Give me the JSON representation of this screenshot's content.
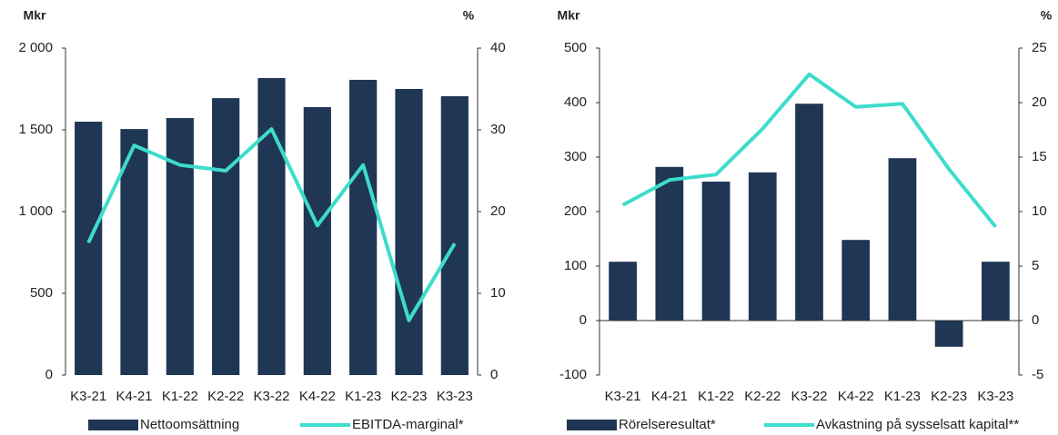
{
  "chart_data": [
    {
      "type": "bar",
      "y_label": "Mkr",
      "y2_label": "%",
      "categories": [
        "K3-21",
        "K4-21",
        "K1-22",
        "K2-22",
        "K3-22",
        "K4-22",
        "K1-23",
        "K2-23",
        "K3-23"
      ],
      "series": [
        {
          "name": "Nettoomsättning",
          "type": "bar",
          "color": "#1f3655",
          "values": [
            1550,
            1505,
            1572,
            1694,
            1817,
            1639,
            1806,
            1750,
            1706
          ]
        },
        {
          "name": "EBITDA-marginal*",
          "type": "line",
          "axis": "y2",
          "color": "#3ddccb",
          "values": [
            16.2,
            28.1,
            25.7,
            25,
            30.1,
            18.3,
            25.7,
            6.7,
            16.1
          ]
        }
      ],
      "ylim": [
        0,
        2000
      ],
      "yticks": [
        0,
        500,
        {
          "value": 1000,
          "label": "1 000"
        },
        {
          "value": 1500,
          "label": "1 500"
        },
        {
          "value": 2000,
          "label": "2 000"
        }
      ],
      "y2lim": [
        0,
        40
      ],
      "y2ticks": [
        0,
        10,
        20,
        30,
        40
      ],
      "legend": "bottom"
    },
    {
      "type": "bar",
      "y_label": "Mkr",
      "y2_label": "%",
      "categories": [
        "K3-21",
        "K4-21",
        "K1-22",
        "K2-22",
        "K3-22",
        "K4-22",
        "K1-23",
        "K2-23",
        "K3-23"
      ],
      "series": [
        {
          "name": "Rörelseresultat*",
          "type": "bar",
          "color": "#1f3655",
          "values": [
            108,
            282,
            255,
            272,
            398,
            148,
            298,
            -48,
            108
          ]
        },
        {
          "name": "Avkastning på sysselsatt kapital**",
          "type": "line",
          "axis": "y2",
          "color": "#3ddccb",
          "values": [
            10.6,
            12.9,
            13.4,
            17.6,
            22.6,
            19.6,
            19.9,
            13.9,
            8.6
          ]
        }
      ],
      "ylim": [
        -100,
        500
      ],
      "yticks": [
        -100,
        0,
        100,
        200,
        300,
        400,
        500
      ],
      "y2lim": [
        -5,
        25
      ],
      "y2ticks": [
        -5,
        0,
        5,
        10,
        15,
        20,
        25
      ],
      "legend": "bottom"
    }
  ]
}
